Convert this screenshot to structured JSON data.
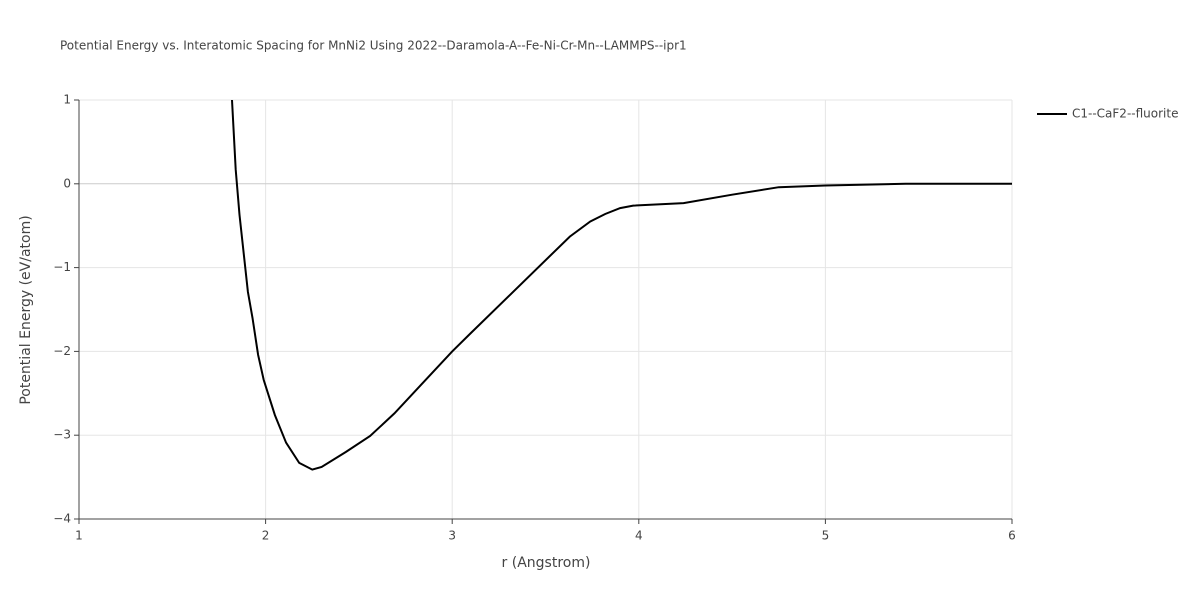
{
  "chart_data": {
    "type": "line",
    "title": "Potential Energy vs. Interatomic Spacing for MnNi2 Using 2022--Daramola-A--Fe-Ni-Cr-Mn--LAMMPS--ipr1",
    "x_label": "r (Angstrom)",
    "y_label": "Potential Energy (eV/atom)",
    "x": [
      1.82,
      1.84,
      1.86,
      1.905,
      1.93,
      1.96,
      1.99,
      2.05,
      2.11,
      2.18,
      2.25,
      2.3,
      2.43,
      2.56,
      2.69,
      3.0,
      3.1,
      3.63,
      3.74,
      3.82,
      3.9,
      3.97,
      4.24,
      4.5,
      4.75,
      5.0,
      5.43,
      6.0
    ],
    "series": [
      {
        "name": "C1--CaF2--fluorite",
        "color": "#000000",
        "values": [
          1,
          0.17,
          -0.37,
          -1.29,
          -1.6,
          -2.04,
          -2.34,
          -2.76,
          -3.09,
          -3.33,
          -3.41,
          -3.38,
          -3.2,
          -3.01,
          -2.74,
          -2.0,
          -1.78,
          -0.63,
          -0.45,
          -0.36,
          -0.29,
          -0.26,
          -0.23,
          -0.13,
          -0.04,
          -0.02,
          0,
          0
        ]
      }
    ],
    "xlim": [
      1,
      6
    ],
    "ylim": [
      -4,
      1
    ],
    "xticks": [
      1,
      2,
      3,
      4,
      5,
      6
    ],
    "yticks": [
      {
        "value": -4,
        "label": "−4"
      },
      {
        "value": -3,
        "label": "−3"
      },
      {
        "value": -2,
        "label": "−2"
      },
      {
        "value": -1,
        "label": "−1"
      },
      0,
      1
    ],
    "grid": true
  }
}
